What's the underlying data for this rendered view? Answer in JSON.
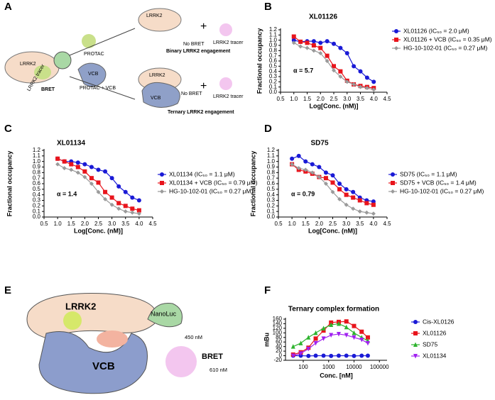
{
  "panel_labels": [
    "A",
    "B",
    "C",
    "D",
    "E",
    "F"
  ],
  "diagram_a": {
    "lrrk2": "LRRK2",
    "protac": "PROTAC",
    "vcb": "VCB",
    "protac_vcb": "PROTAC + VCB",
    "bret": "BRET",
    "tracer_left": "LRRK2 tracer",
    "top_lrrk2": "LRRK2",
    "top_no_bret": "No BRET",
    "top_tracer": "LRRK2 tracer",
    "binary": "Binary LRRK2 engagement",
    "bottom_lrrk2": "LRRK2",
    "bottom_vcb": "VCB",
    "bottom_no_bret": "No BRET",
    "bottom_tracer": "LRRK2 tracer",
    "ternary": "Ternary LRRK2 engagement"
  },
  "diagram_e": {
    "lrrk2": "LRRK2",
    "nanoluc": "NanoLuc",
    "vcb": "VCB",
    "emission_in": "450 nM",
    "bret": "BRET",
    "emission_out": "610 nM"
  },
  "chart_data": [
    {
      "type": "line",
      "title": "XL01126",
      "x_label": "Log[Conc. (nM)]",
      "y_label": "Fractional occupancy",
      "annotation": "α = 5.7",
      "x": [
        1,
        1.25,
        1.5,
        1.75,
        2,
        2.25,
        2.5,
        2.75,
        3,
        3.25,
        3.5,
        3.75,
        4
      ],
      "series": [
        {
          "name": "XL01126 (IC₅₀ = 2.0 μM)",
          "color": "#1a1ad6",
          "marker": "circle",
          "values": [
            1.0,
            0.97,
            0.98,
            0.98,
            0.95,
            0.98,
            0.93,
            0.85,
            0.75,
            0.5,
            0.4,
            0.28,
            0.2
          ]
        },
        {
          "name": "XL01126 + VCB (IC₅₀ = 0.35 μM)",
          "color": "#e8141c",
          "marker": "square",
          "values": [
            1.07,
            0.97,
            0.95,
            0.9,
            0.85,
            0.7,
            0.5,
            0.4,
            0.22,
            0.15,
            0.12,
            0.1,
            0.08
          ]
        },
        {
          "name": "HG-10-102-01 (IC₅₀ = 0.27 μM)",
          "color": "#9a9a9a",
          "marker": "diamond",
          "values": [
            0.95,
            0.88,
            0.85,
            0.8,
            0.75,
            0.6,
            0.42,
            0.3,
            0.2,
            0.15,
            0.1,
            0.08,
            0.05
          ]
        }
      ],
      "xlim": [
        0.5,
        4.5
      ],
      "xticks": [
        0.5,
        {
          "value": 1,
          "label": "1.0"
        },
        1.5,
        {
          "value": 2,
          "label": "2.0"
        },
        2.5,
        {
          "value": 3,
          "label": "3.0"
        },
        3.5,
        {
          "value": 4,
          "label": "4.0"
        },
        4.5
      ],
      "ylim": [
        0,
        1.2
      ],
      "yticks": [
        {
          "value": 0,
          "label": "0.0"
        },
        0.1,
        0.2,
        0.3,
        0.4,
        0.5,
        0.6,
        0.7,
        0.8,
        0.9,
        {
          "value": 1,
          "label": "1.0"
        },
        1.1,
        1.2
      ]
    },
    {
      "type": "line",
      "title": "XL01134",
      "x_label": "Log[Conc. (nM)]",
      "y_label": "Fractional occupancy",
      "annotation": "α = 1.4",
      "x": [
        1,
        1.25,
        1.5,
        1.75,
        2,
        2.25,
        2.5,
        2.75,
        3,
        3.25,
        3.5,
        3.75,
        4
      ],
      "series": [
        {
          "name": "XL01134 (IC₅₀ = 1.1 μM)",
          "color": "#1a1ad6",
          "marker": "circle",
          "values": [
            1.05,
            1.0,
            1.0,
            0.98,
            0.95,
            0.9,
            0.85,
            0.82,
            0.7,
            0.55,
            0.45,
            0.35,
            0.3
          ]
        },
        {
          "name": "XL01134 + VCB (IC₅₀ = 0.79 μM)",
          "color": "#e8141c",
          "marker": "square",
          "values": [
            1.05,
            1.0,
            0.95,
            0.9,
            0.82,
            0.7,
            0.62,
            0.45,
            0.35,
            0.25,
            0.2,
            0.15,
            0.12
          ]
        },
        {
          "name": "HG-10-102-01 (IC₅₀ = 0.27 μM)",
          "color": "#9a9a9a",
          "marker": "diamond",
          "values": [
            0.95,
            0.88,
            0.85,
            0.8,
            0.72,
            0.6,
            0.45,
            0.32,
            0.22,
            0.15,
            0.1,
            0.08,
            0.06
          ]
        }
      ],
      "xlim": [
        0.5,
        4.5
      ],
      "xticks": [
        0.5,
        {
          "value": 1,
          "label": "1.0"
        },
        1.5,
        {
          "value": 2,
          "label": "2.0"
        },
        2.5,
        {
          "value": 3,
          "label": "3.0"
        },
        3.5,
        {
          "value": 4,
          "label": "4.0"
        },
        4.5
      ],
      "ylim": [
        0,
        1.2
      ],
      "yticks": [
        {
          "value": 0,
          "label": "0.0"
        },
        0.1,
        0.2,
        0.3,
        0.4,
        0.5,
        0.6,
        0.7,
        0.8,
        0.9,
        {
          "value": 1,
          "label": "1.0"
        },
        1.1,
        1.2
      ]
    },
    {
      "type": "line",
      "title": "SD75",
      "x_label": "Log[Conc. (nM)]",
      "y_label": "Fractional occupancy",
      "annotation": "α = 0.79",
      "x": [
        1,
        1.25,
        1.5,
        1.75,
        2,
        2.25,
        2.5,
        2.75,
        3,
        3.25,
        3.5,
        3.75,
        4
      ],
      "series": [
        {
          "name": "SD75 (IC₅₀ = 1.1 μM)",
          "color": "#1a1ad6",
          "marker": "circle",
          "values": [
            1.05,
            1.1,
            1.0,
            0.95,
            0.9,
            0.8,
            0.75,
            0.6,
            0.5,
            0.45,
            0.35,
            0.3,
            0.28
          ]
        },
        {
          "name": "SD75 + VCB (IC₅₀ = 1.4 μM)",
          "color": "#e8141c",
          "marker": "square",
          "values": [
            0.95,
            0.85,
            0.82,
            0.78,
            0.72,
            0.7,
            0.62,
            0.5,
            0.4,
            0.35,
            0.3,
            0.25,
            0.22
          ]
        },
        {
          "name": "HG-10-102-01 (IC₅₀ = 0.27 μM)",
          "color": "#9a9a9a",
          "marker": "diamond",
          "values": [
            0.95,
            0.88,
            0.85,
            0.8,
            0.72,
            0.6,
            0.45,
            0.32,
            0.22,
            0.15,
            0.1,
            0.08,
            0.06
          ]
        }
      ],
      "xlim": [
        0.5,
        4.5
      ],
      "xticks": [
        0.5,
        {
          "value": 1,
          "label": "1.0"
        },
        1.5,
        {
          "value": 2,
          "label": "2.0"
        },
        2.5,
        {
          "value": 3,
          "label": "3.0"
        },
        3.5,
        {
          "value": 4,
          "label": "4.0"
        },
        4.5
      ],
      "ylim": [
        0,
        1.2
      ],
      "yticks": [
        {
          "value": 0,
          "label": "0.0"
        },
        0.1,
        0.2,
        0.3,
        0.4,
        0.5,
        0.6,
        0.7,
        0.8,
        0.9,
        {
          "value": 1,
          "label": "1.0"
        },
        1.1,
        1.2
      ]
    },
    {
      "type": "line",
      "title": "Ternary complex formation",
      "x_label": "Conc. [nM]",
      "y_label": "mBu",
      "xlog": true,
      "x": [
        40,
        80,
        160,
        310,
        630,
        1250,
        2500,
        5000,
        10000,
        20000,
        35000
      ],
      "series": [
        {
          "name": "Cis-XL0126",
          "color": "#1a1ad6",
          "marker": "circle",
          "values": [
            0,
            0,
            -1,
            0,
            0,
            -1,
            0,
            0,
            -1,
            0,
            0
          ]
        },
        {
          "name": "XL01126",
          "color": "#e8141c",
          "marker": "square",
          "values": [
            5,
            15,
            35,
            75,
            110,
            145,
            148,
            150,
            130,
            105,
            80
          ]
        },
        {
          "name": "SD75",
          "color": "#2db32d",
          "marker": "triangle",
          "values": [
            40,
            55,
            80,
            100,
            120,
            135,
            140,
            125,
            100,
            80,
            65
          ]
        },
        {
          "name": "XL01134",
          "color": "#a020f0",
          "marker": "triangle-down",
          "values": [
            0,
            10,
            30,
            55,
            75,
            90,
            95,
            90,
            80,
            70,
            55
          ]
        }
      ],
      "xlim": [
        20,
        200000
      ],
      "xticks": [
        100,
        1000,
        10000,
        100000
      ],
      "ylim": [
        -20,
        160
      ],
      "yticks": [
        -20,
        0,
        20,
        40,
        60,
        80,
        100,
        120,
        140,
        160
      ]
    }
  ]
}
